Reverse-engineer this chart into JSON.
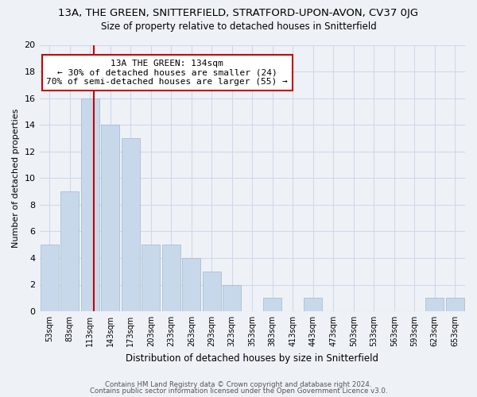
{
  "title": "13A, THE GREEN, SNITTERFIELD, STRATFORD-UPON-AVON, CV37 0JG",
  "subtitle": "Size of property relative to detached houses in Snitterfield",
  "xlabel": "Distribution of detached houses by size in Snitterfield",
  "ylabel": "Number of detached properties",
  "bar_color": "#c8d8eb",
  "bar_edge_color": "#a0b8cc",
  "categories": [
    "53sqm",
    "83sqm",
    "113sqm",
    "143sqm",
    "173sqm",
    "203sqm",
    "233sqm",
    "263sqm",
    "293sqm",
    "323sqm",
    "353sqm",
    "383sqm",
    "413sqm",
    "443sqm",
    "473sqm",
    "503sqm",
    "533sqm",
    "563sqm",
    "593sqm",
    "623sqm",
    "653sqm"
  ],
  "values": [
    5,
    9,
    16,
    14,
    13,
    5,
    5,
    4,
    3,
    2,
    0,
    1,
    0,
    1,
    0,
    0,
    0,
    0,
    0,
    1,
    1
  ],
  "ylim": [
    0,
    20
  ],
  "yticks": [
    0,
    2,
    4,
    6,
    8,
    10,
    12,
    14,
    16,
    18,
    20
  ],
  "marker_color": "#cc0000",
  "annotation_title": "13A THE GREEN: 134sqm",
  "annotation_line1": "← 30% of detached houses are smaller (24)",
  "annotation_line2": "70% of semi-detached houses are larger (55) →",
  "annotation_box_color": "#ffffff",
  "annotation_box_edge": "#cc0000",
  "grid_color": "#d0d8e8",
  "bg_color": "#eef2f7",
  "footer1": "Contains HM Land Registry data © Crown copyright and database right 2024.",
  "footer2": "Contains public sector information licensed under the Open Government Licence v3.0."
}
